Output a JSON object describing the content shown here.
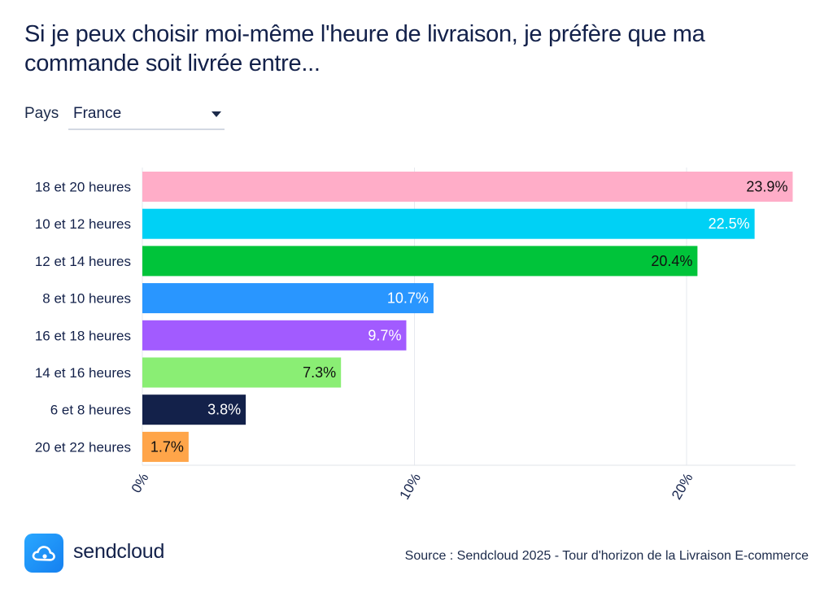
{
  "title": "Si je peux choisir moi-même l'heure de livraison, je préfère que ma commande soit livrée entre...",
  "filter": {
    "label": "Pays",
    "value": "France"
  },
  "brand": {
    "name": "sendcloud"
  },
  "source": "Source : Sendcloud 2025 - Tour d'horizon de la Livraison E-commerce",
  "chart_data": {
    "type": "bar",
    "orientation": "horizontal",
    "title": "Si je peux choisir moi-même l'heure de livraison, je préfère que ma commande soit livrée entre...",
    "xlabel": "",
    "ylabel": "",
    "xlim": [
      0,
      24
    ],
    "grid": true,
    "x_ticks": [
      "0%",
      "10%",
      "20%"
    ],
    "x_tick_values": [
      0,
      10,
      20
    ],
    "categories": [
      "18 et 20 heures",
      "10 et 12 heures",
      "12 et 14 heures",
      "8 et 10 heures",
      "16 et 18 heures",
      "14 et 16 heures",
      "6 et 8 heures",
      "20 et 22 heures"
    ],
    "values": [
      23.9,
      22.5,
      20.4,
      10.7,
      9.7,
      7.3,
      3.8,
      1.7
    ],
    "labels": [
      "23.9%",
      "22.5%",
      "20.4%",
      "10.7%",
      "9.7%",
      "7.3%",
      "3.8%",
      "1.7%"
    ],
    "colors": [
      "#ffadc8",
      "#00d1f5",
      "#00c43a",
      "#2996ff",
      "#a25bff",
      "#8aee74",
      "#13214a",
      "#ffa549"
    ],
    "label_colors": [
      "#111111",
      "#ffffff",
      "#111111",
      "#ffffff",
      "#ffffff",
      "#111111",
      "#ffffff",
      "#111111"
    ]
  }
}
